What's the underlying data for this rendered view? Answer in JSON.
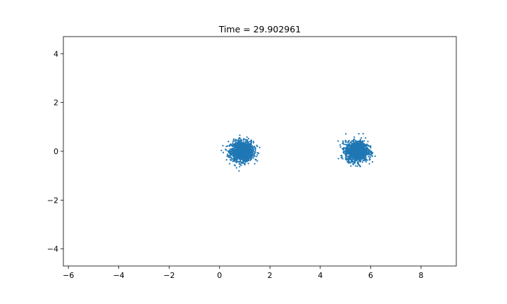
{
  "chart_data": {
    "type": "scatter",
    "title": "Time = 29.902961",
    "xlabel": "",
    "ylabel": "",
    "xlim": [
      -6.2,
      9.4
    ],
    "ylim": [
      -4.7,
      4.7
    ],
    "x_ticks": [
      -6,
      -4,
      -2,
      0,
      2,
      4,
      6,
      8
    ],
    "x_tick_labels": [
      "−6",
      "−4",
      "−2",
      "0",
      "2",
      "4",
      "6",
      "8"
    ],
    "y_ticks": [
      -4,
      -2,
      0,
      2,
      4
    ],
    "y_tick_labels": [
      "−4",
      "−2",
      "0",
      "2",
      "4"
    ],
    "grid": false,
    "legend": "none",
    "marker_color": "#1f77b4",
    "series": [
      {
        "cluster_center": [
          0.9,
          0.0
        ],
        "cluster_spread": [
          0.22,
          0.2
        ],
        "points": [
          [
            0.9,
            0.0
          ],
          [
            0.62,
            0.15
          ],
          [
            1.18,
            -0.12
          ],
          [
            0.75,
            0.42
          ],
          [
            1.05,
            -0.4
          ],
          [
            0.5,
            -0.1
          ],
          [
            1.3,
            0.1
          ],
          [
            0.85,
            -0.3
          ],
          [
            0.95,
            0.3
          ],
          [
            0.4,
            0.25
          ],
          [
            1.4,
            -0.05
          ],
          [
            0.68,
            -0.38
          ],
          [
            1.12,
            0.38
          ],
          [
            0.3,
            -0.2
          ],
          [
            1.5,
            0.2
          ],
          [
            0.78,
            0.55
          ],
          [
            1.0,
            -0.55
          ],
          [
            0.35,
            0.4
          ],
          [
            1.45,
            -0.35
          ],
          [
            0.15,
            -0.05
          ]
        ]
      },
      {
        "cluster_center": [
          5.45,
          0.0
        ],
        "cluster_spread": [
          0.22,
          0.2
        ],
        "points": [
          [
            5.45,
            0.0
          ],
          [
            5.18,
            0.12
          ],
          [
            5.72,
            -0.1
          ],
          [
            5.3,
            0.4
          ],
          [
            5.6,
            -0.42
          ],
          [
            5.0,
            -0.12
          ],
          [
            5.85,
            0.15
          ],
          [
            5.4,
            -0.32
          ],
          [
            5.52,
            0.3
          ],
          [
            4.95,
            0.28
          ],
          [
            5.92,
            -0.08
          ],
          [
            5.25,
            -0.4
          ],
          [
            5.68,
            0.42
          ],
          [
            4.85,
            -0.18
          ],
          [
            6.0,
            0.22
          ],
          [
            5.35,
            0.58
          ],
          [
            5.55,
            -0.58
          ],
          [
            4.9,
            0.42
          ],
          [
            5.95,
            -0.35
          ],
          [
            5.7,
            0.72
          ]
        ]
      }
    ]
  }
}
